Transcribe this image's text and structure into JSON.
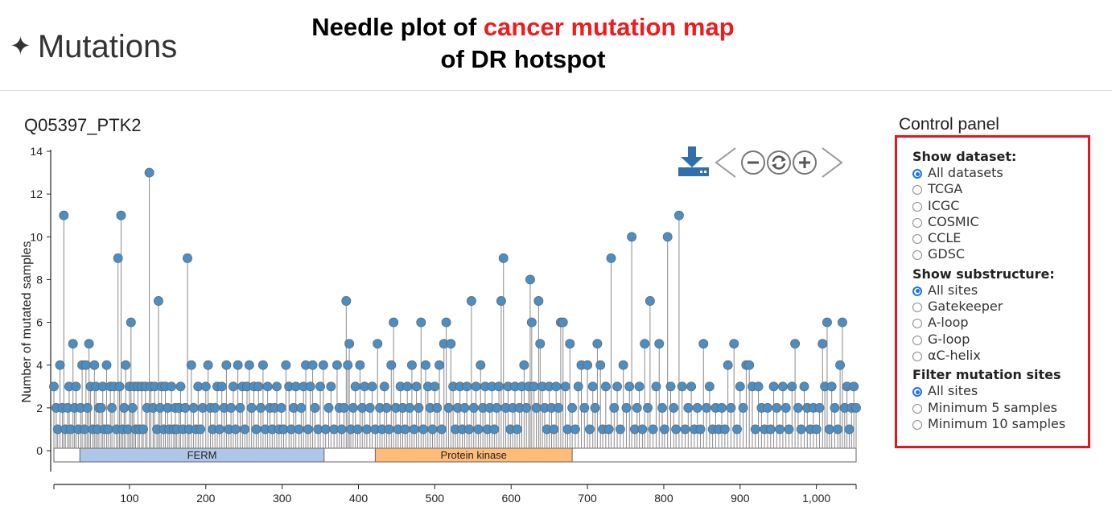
{
  "header": {
    "section_icon": "sparkle-icon",
    "section_title": "Mutations",
    "caption_prefix": "Needle plot of ",
    "caption_highlight": "cancer mutation map",
    "caption_line2": "of DR hotspot",
    "caption_highlight_color": "#ee1c1c"
  },
  "protein_label": "Q05397_PTK2",
  "toolbar": {
    "download": "download-icon",
    "pan_left": "chevron-left-icon",
    "zoom_out": "zoom-out-icon",
    "reset": "refresh-icon",
    "zoom_in": "zoom-in-icon",
    "pan_right": "chevron-right-icon",
    "accent": "#2f6fae"
  },
  "control_panel": {
    "title": "Control panel",
    "groups": [
      {
        "title": "Show dataset:",
        "options": [
          "All datasets",
          "TCGA",
          "ICGC",
          "COSMIC",
          "CCLE",
          "GDSC"
        ],
        "selected": 0
      },
      {
        "title": "Show substructure:",
        "options": [
          "All sites",
          "Gatekeeper",
          "A-loop",
          "G-loop",
          "αC-helix"
        ],
        "selected": 0
      },
      {
        "title": "Filter mutation sites",
        "options": [
          "All sites",
          "Minimum 5 samples",
          "Minimum 10 samples"
        ],
        "selected": 0
      }
    ]
  },
  "chart_data": {
    "type": "scatter",
    "style": "needle/lollipop",
    "ylabel": "Number of mutated samples",
    "xlim": [
      1,
      1052
    ],
    "ylim": [
      0,
      14
    ],
    "yticks": [
      0,
      2,
      4,
      6,
      8,
      10,
      12,
      14
    ],
    "xticks": [
      100,
      200,
      300,
      400,
      500,
      600,
      700,
      800,
      900,
      1000
    ],
    "xtick_labels": [
      "100",
      "200",
      "300",
      "400",
      "500",
      "600",
      "700",
      "800",
      "900",
      "1,000"
    ],
    "point_color": "#4a8ec4",
    "domains": [
      {
        "name": "FERM",
        "start": 35,
        "end": 355,
        "color": "#aec7e8"
      },
      {
        "name": "Protein kinase",
        "start": 422,
        "end": 680,
        "color": "#ffbb78"
      }
    ],
    "points": [
      {
        "x": 1,
        "y": 3
      },
      {
        "x": 4,
        "y": 2
      },
      {
        "x": 6,
        "y": 1
      },
      {
        "x": 9,
        "y": 4
      },
      {
        "x": 12,
        "y": 2
      },
      {
        "x": 14,
        "y": 11
      },
      {
        "x": 16,
        "y": 1
      },
      {
        "x": 19,
        "y": 2
      },
      {
        "x": 21,
        "y": 3
      },
      {
        "x": 23,
        "y": 1
      },
      {
        "x": 26,
        "y": 5
      },
      {
        "x": 28,
        "y": 2
      },
      {
        "x": 30,
        "y": 3
      },
      {
        "x": 33,
        "y": 1
      },
      {
        "x": 36,
        "y": 2
      },
      {
        "x": 38,
        "y": 4
      },
      {
        "x": 41,
        "y": 1
      },
      {
        "x": 43,
        "y": 4
      },
      {
        "x": 45,
        "y": 2
      },
      {
        "x": 47,
        "y": 5
      },
      {
        "x": 49,
        "y": 3
      },
      {
        "x": 52,
        "y": 1
      },
      {
        "x": 54,
        "y": 4
      },
      {
        "x": 56,
        "y": 3
      },
      {
        "x": 58,
        "y": 1
      },
      {
        "x": 60,
        "y": 2
      },
      {
        "x": 63,
        "y": 2
      },
      {
        "x": 65,
        "y": 3
      },
      {
        "x": 67,
        "y": 1
      },
      {
        "x": 70,
        "y": 4
      },
      {
        "x": 72,
        "y": 1
      },
      {
        "x": 75,
        "y": 3
      },
      {
        "x": 77,
        "y": 2
      },
      {
        "x": 80,
        "y": 3
      },
      {
        "x": 83,
        "y": 1
      },
      {
        "x": 85,
        "y": 9
      },
      {
        "x": 87,
        "y": 3
      },
      {
        "x": 89,
        "y": 11
      },
      {
        "x": 91,
        "y": 1
      },
      {
        "x": 93,
        "y": 2
      },
      {
        "x": 95,
        "y": 4
      },
      {
        "x": 98,
        "y": 1
      },
      {
        "x": 100,
        "y": 3
      },
      {
        "x": 102,
        "y": 6
      },
      {
        "x": 104,
        "y": 2
      },
      {
        "x": 106,
        "y": 3
      },
      {
        "x": 108,
        "y": 1
      },
      {
        "x": 111,
        "y": 3
      },
      {
        "x": 113,
        "y": 1
      },
      {
        "x": 116,
        "y": 3
      },
      {
        "x": 118,
        "y": 1
      },
      {
        "x": 121,
        "y": 3
      },
      {
        "x": 123,
        "y": 2
      },
      {
        "x": 126,
        "y": 13
      },
      {
        "x": 128,
        "y": 3
      },
      {
        "x": 131,
        "y": 2
      },
      {
        "x": 133,
        "y": 3
      },
      {
        "x": 136,
        "y": 1
      },
      {
        "x": 138,
        "y": 7
      },
      {
        "x": 140,
        "y": 2
      },
      {
        "x": 142,
        "y": 3
      },
      {
        "x": 145,
        "y": 1
      },
      {
        "x": 147,
        "y": 3
      },
      {
        "x": 150,
        "y": 2
      },
      {
        "x": 152,
        "y": 1
      },
      {
        "x": 155,
        "y": 3
      },
      {
        "x": 158,
        "y": 1
      },
      {
        "x": 160,
        "y": 2
      },
      {
        "x": 162,
        "y": 1
      },
      {
        "x": 165,
        "y": 2
      },
      {
        "x": 167,
        "y": 3
      },
      {
        "x": 170,
        "y": 1
      },
      {
        "x": 173,
        "y": 2
      },
      {
        "x": 176,
        "y": 9
      },
      {
        "x": 178,
        "y": 1
      },
      {
        "x": 181,
        "y": 4
      },
      {
        "x": 184,
        "y": 2
      },
      {
        "x": 187,
        "y": 1
      },
      {
        "x": 190,
        "y": 3
      },
      {
        "x": 193,
        "y": 1
      },
      {
        "x": 196,
        "y": 2
      },
      {
        "x": 200,
        "y": 3
      },
      {
        "x": 203,
        "y": 4
      },
      {
        "x": 206,
        "y": 2
      },
      {
        "x": 209,
        "y": 1
      },
      {
        "x": 212,
        "y": 2
      },
      {
        "x": 215,
        "y": 3
      },
      {
        "x": 218,
        "y": 1
      },
      {
        "x": 221,
        "y": 3
      },
      {
        "x": 224,
        "y": 2
      },
      {
        "x": 227,
        "y": 4
      },
      {
        "x": 230,
        "y": 1
      },
      {
        "x": 233,
        "y": 2
      },
      {
        "x": 236,
        "y": 3
      },
      {
        "x": 239,
        "y": 1
      },
      {
        "x": 242,
        "y": 4
      },
      {
        "x": 245,
        "y": 2
      },
      {
        "x": 248,
        "y": 3
      },
      {
        "x": 251,
        "y": 1
      },
      {
        "x": 254,
        "y": 3
      },
      {
        "x": 257,
        "y": 4
      },
      {
        "x": 260,
        "y": 2
      },
      {
        "x": 263,
        "y": 3
      },
      {
        "x": 266,
        "y": 1
      },
      {
        "x": 269,
        "y": 3
      },
      {
        "x": 272,
        "y": 2
      },
      {
        "x": 275,
        "y": 4
      },
      {
        "x": 278,
        "y": 1
      },
      {
        "x": 281,
        "y": 3
      },
      {
        "x": 284,
        "y": 2
      },
      {
        "x": 287,
        "y": 1
      },
      {
        "x": 290,
        "y": 2
      },
      {
        "x": 293,
        "y": 3
      },
      {
        "x": 296,
        "y": 1
      },
      {
        "x": 299,
        "y": 2
      },
      {
        "x": 302,
        "y": 1
      },
      {
        "x": 305,
        "y": 4
      },
      {
        "x": 309,
        "y": 3
      },
      {
        "x": 312,
        "y": 1
      },
      {
        "x": 315,
        "y": 2
      },
      {
        "x": 318,
        "y": 3
      },
      {
        "x": 322,
        "y": 1
      },
      {
        "x": 325,
        "y": 2
      },
      {
        "x": 328,
        "y": 3
      },
      {
        "x": 331,
        "y": 4
      },
      {
        "x": 334,
        "y": 1
      },
      {
        "x": 337,
        "y": 3
      },
      {
        "x": 340,
        "y": 4
      },
      {
        "x": 343,
        "y": 2
      },
      {
        "x": 347,
        "y": 1
      },
      {
        "x": 350,
        "y": 3
      },
      {
        "x": 354,
        "y": 4
      },
      {
        "x": 357,
        "y": 1
      },
      {
        "x": 361,
        "y": 2
      },
      {
        "x": 364,
        "y": 3
      },
      {
        "x": 368,
        "y": 1
      },
      {
        "x": 372,
        "y": 4
      },
      {
        "x": 375,
        "y": 2
      },
      {
        "x": 378,
        "y": 1
      },
      {
        "x": 381,
        "y": 2
      },
      {
        "x": 384,
        "y": 7
      },
      {
        "x": 386,
        "y": 4
      },
      {
        "x": 388,
        "y": 5
      },
      {
        "x": 390,
        "y": 1
      },
      {
        "x": 393,
        "y": 2
      },
      {
        "x": 396,
        "y": 3
      },
      {
        "x": 399,
        "y": 1
      },
      {
        "x": 402,
        "y": 4
      },
      {
        "x": 405,
        "y": 2
      },
      {
        "x": 408,
        "y": 3
      },
      {
        "x": 411,
        "y": 1
      },
      {
        "x": 415,
        "y": 2
      },
      {
        "x": 418,
        "y": 3
      },
      {
        "x": 422,
        "y": 1
      },
      {
        "x": 425,
        "y": 5
      },
      {
        "x": 428,
        "y": 2
      },
      {
        "x": 431,
        "y": 1
      },
      {
        "x": 434,
        "y": 3
      },
      {
        "x": 437,
        "y": 2
      },
      {
        "x": 440,
        "y": 1
      },
      {
        "x": 443,
        "y": 4
      },
      {
        "x": 446,
        "y": 6
      },
      {
        "x": 449,
        "y": 2
      },
      {
        "x": 452,
        "y": 1
      },
      {
        "x": 455,
        "y": 3
      },
      {
        "x": 458,
        "y": 2
      },
      {
        "x": 461,
        "y": 1
      },
      {
        "x": 464,
        "y": 3
      },
      {
        "x": 467,
        "y": 2
      },
      {
        "x": 470,
        "y": 4
      },
      {
        "x": 473,
        "y": 1
      },
      {
        "x": 476,
        "y": 3
      },
      {
        "x": 479,
        "y": 2
      },
      {
        "x": 482,
        "y": 6
      },
      {
        "x": 485,
        "y": 1
      },
      {
        "x": 488,
        "y": 4
      },
      {
        "x": 491,
        "y": 3
      },
      {
        "x": 494,
        "y": 2
      },
      {
        "x": 497,
        "y": 1
      },
      {
        "x": 500,
        "y": 3
      },
      {
        "x": 503,
        "y": 2
      },
      {
        "x": 506,
        "y": 4
      },
      {
        "x": 509,
        "y": 1
      },
      {
        "x": 512,
        "y": 5
      },
      {
        "x": 515,
        "y": 6
      },
      {
        "x": 518,
        "y": 2
      },
      {
        "x": 521,
        "y": 5
      },
      {
        "x": 524,
        "y": 3
      },
      {
        "x": 527,
        "y": 1
      },
      {
        "x": 530,
        "y": 2
      },
      {
        "x": 533,
        "y": 3
      },
      {
        "x": 536,
        "y": 1
      },
      {
        "x": 539,
        "y": 2
      },
      {
        "x": 542,
        "y": 3
      },
      {
        "x": 545,
        "y": 1
      },
      {
        "x": 548,
        "y": 7
      },
      {
        "x": 551,
        "y": 2
      },
      {
        "x": 554,
        "y": 3
      },
      {
        "x": 557,
        "y": 1
      },
      {
        "x": 560,
        "y": 4
      },
      {
        "x": 563,
        "y": 2
      },
      {
        "x": 566,
        "y": 3
      },
      {
        "x": 569,
        "y": 1
      },
      {
        "x": 572,
        "y": 2
      },
      {
        "x": 575,
        "y": 3
      },
      {
        "x": 578,
        "y": 1
      },
      {
        "x": 581,
        "y": 2
      },
      {
        "x": 584,
        "y": 3
      },
      {
        "x": 587,
        "y": 7
      },
      {
        "x": 590,
        "y": 9
      },
      {
        "x": 593,
        "y": 2
      },
      {
        "x": 596,
        "y": 3
      },
      {
        "x": 599,
        "y": 1
      },
      {
        "x": 602,
        "y": 2
      },
      {
        "x": 605,
        "y": 3
      },
      {
        "x": 608,
        "y": 1
      },
      {
        "x": 611,
        "y": 2
      },
      {
        "x": 614,
        "y": 3
      },
      {
        "x": 617,
        "y": 4
      },
      {
        "x": 620,
        "y": 2
      },
      {
        "x": 623,
        "y": 3
      },
      {
        "x": 625,
        "y": 8
      },
      {
        "x": 627,
        "y": 6
      },
      {
        "x": 630,
        "y": 3
      },
      {
        "x": 633,
        "y": 2
      },
      {
        "x": 636,
        "y": 7
      },
      {
        "x": 638,
        "y": 5
      },
      {
        "x": 641,
        "y": 3
      },
      {
        "x": 644,
        "y": 2
      },
      {
        "x": 647,
        "y": 1
      },
      {
        "x": 650,
        "y": 3
      },
      {
        "x": 653,
        "y": 2
      },
      {
        "x": 656,
        "y": 1
      },
      {
        "x": 659,
        "y": 3
      },
      {
        "x": 662,
        "y": 2
      },
      {
        "x": 665,
        "y": 6
      },
      {
        "x": 668,
        "y": 6
      },
      {
        "x": 671,
        "y": 3
      },
      {
        "x": 674,
        "y": 1
      },
      {
        "x": 677,
        "y": 5
      },
      {
        "x": 680,
        "y": 2
      },
      {
        "x": 684,
        "y": 1
      },
      {
        "x": 688,
        "y": 3
      },
      {
        "x": 692,
        "y": 4
      },
      {
        "x": 696,
        "y": 2
      },
      {
        "x": 700,
        "y": 4
      },
      {
        "x": 703,
        "y": 1
      },
      {
        "x": 707,
        "y": 3
      },
      {
        "x": 710,
        "y": 2
      },
      {
        "x": 713,
        "y": 5
      },
      {
        "x": 717,
        "y": 4
      },
      {
        "x": 720,
        "y": 1
      },
      {
        "x": 724,
        "y": 3
      },
      {
        "x": 728,
        "y": 1
      },
      {
        "x": 731,
        "y": 9
      },
      {
        "x": 735,
        "y": 2
      },
      {
        "x": 739,
        "y": 3
      },
      {
        "x": 743,
        "y": 1
      },
      {
        "x": 747,
        "y": 4
      },
      {
        "x": 751,
        "y": 2
      },
      {
        "x": 755,
        "y": 3
      },
      {
        "x": 758,
        "y": 10
      },
      {
        "x": 762,
        "y": 1
      },
      {
        "x": 765,
        "y": 2
      },
      {
        "x": 768,
        "y": 3
      },
      {
        "x": 772,
        "y": 1
      },
      {
        "x": 775,
        "y": 5
      },
      {
        "x": 779,
        "y": 2
      },
      {
        "x": 782,
        "y": 7
      },
      {
        "x": 786,
        "y": 1
      },
      {
        "x": 790,
        "y": 3
      },
      {
        "x": 794,
        "y": 5
      },
      {
        "x": 798,
        "y": 2
      },
      {
        "x": 801,
        "y": 1
      },
      {
        "x": 805,
        "y": 10
      },
      {
        "x": 809,
        "y": 3
      },
      {
        "x": 813,
        "y": 2
      },
      {
        "x": 816,
        "y": 1
      },
      {
        "x": 820,
        "y": 11
      },
      {
        "x": 824,
        "y": 3
      },
      {
        "x": 828,
        "y": 1
      },
      {
        "x": 832,
        "y": 2
      },
      {
        "x": 836,
        "y": 3
      },
      {
        "x": 840,
        "y": 1
      },
      {
        "x": 844,
        "y": 2
      },
      {
        "x": 848,
        "y": 1
      },
      {
        "x": 852,
        "y": 5
      },
      {
        "x": 856,
        "y": 2
      },
      {
        "x": 860,
        "y": 3
      },
      {
        "x": 864,
        "y": 1
      },
      {
        "x": 868,
        "y": 2
      },
      {
        "x": 872,
        "y": 1
      },
      {
        "x": 876,
        "y": 2
      },
      {
        "x": 880,
        "y": 1
      },
      {
        "x": 884,
        "y": 4
      },
      {
        "x": 888,
        "y": 2
      },
      {
        "x": 892,
        "y": 5
      },
      {
        "x": 896,
        "y": 1
      },
      {
        "x": 900,
        "y": 3
      },
      {
        "x": 904,
        "y": 2
      },
      {
        "x": 908,
        "y": 4
      },
      {
        "x": 912,
        "y": 4
      },
      {
        "x": 916,
        "y": 3
      },
      {
        "x": 920,
        "y": 1
      },
      {
        "x": 924,
        "y": 3
      },
      {
        "x": 928,
        "y": 2
      },
      {
        "x": 932,
        "y": 1
      },
      {
        "x": 936,
        "y": 2
      },
      {
        "x": 940,
        "y": 1
      },
      {
        "x": 944,
        "y": 3
      },
      {
        "x": 948,
        "y": 2
      },
      {
        "x": 952,
        "y": 1
      },
      {
        "x": 956,
        "y": 3
      },
      {
        "x": 960,
        "y": 2
      },
      {
        "x": 964,
        "y": 1
      },
      {
        "x": 968,
        "y": 3
      },
      {
        "x": 972,
        "y": 5
      },
      {
        "x": 976,
        "y": 2
      },
      {
        "x": 980,
        "y": 1
      },
      {
        "x": 984,
        "y": 3
      },
      {
        "x": 988,
        "y": 2
      },
      {
        "x": 992,
        "y": 1
      },
      {
        "x": 996,
        "y": 2
      },
      {
        "x": 1000,
        "y": 1
      },
      {
        "x": 1004,
        "y": 2
      },
      {
        "x": 1008,
        "y": 5
      },
      {
        "x": 1011,
        "y": 3
      },
      {
        "x": 1014,
        "y": 6
      },
      {
        "x": 1017,
        "y": 1
      },
      {
        "x": 1020,
        "y": 3
      },
      {
        "x": 1024,
        "y": 2
      },
      {
        "x": 1028,
        "y": 1
      },
      {
        "x": 1031,
        "y": 4
      },
      {
        "x": 1034,
        "y": 6
      },
      {
        "x": 1037,
        "y": 2
      },
      {
        "x": 1040,
        "y": 3
      },
      {
        "x": 1043,
        "y": 1
      },
      {
        "x": 1046,
        "y": 2
      },
      {
        "x": 1049,
        "y": 3
      },
      {
        "x": 1052,
        "y": 2
      }
    ]
  }
}
